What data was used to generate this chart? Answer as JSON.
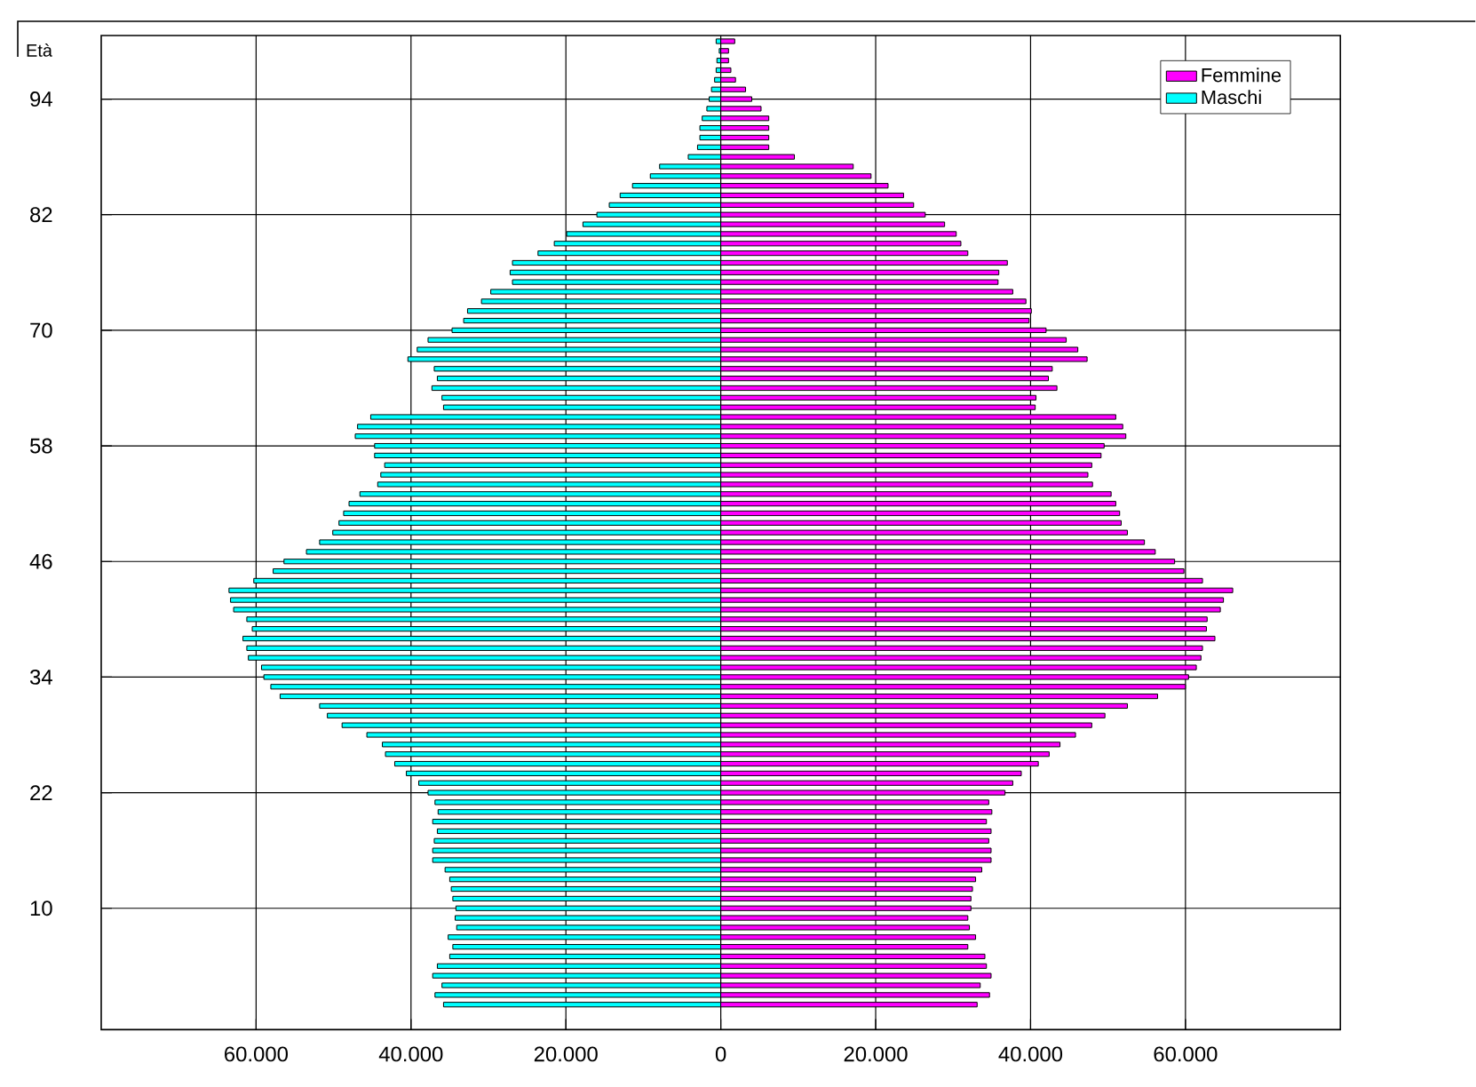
{
  "chart_data": {
    "type": "bar",
    "orientation": "horizontal",
    "stacked": true,
    "ylabel": "Età",
    "categories": [
      null,
      null,
      null,
      null,
      null,
      null,
      "94",
      null,
      null,
      null,
      null,
      null,
      null,
      null,
      null,
      null,
      null,
      null,
      "82",
      null,
      null,
      null,
      null,
      null,
      null,
      null,
      null,
      null,
      null,
      null,
      "70",
      null,
      null,
      null,
      null,
      null,
      null,
      null,
      null,
      null,
      null,
      null,
      "58",
      null,
      null,
      null,
      null,
      null,
      null,
      null,
      null,
      null,
      null,
      null,
      "46",
      null,
      null,
      null,
      null,
      null,
      null,
      null,
      null,
      null,
      null,
      null,
      "34",
      null,
      null,
      null,
      null,
      null,
      null,
      null,
      null,
      null,
      null,
      null,
      "22",
      null,
      null,
      null,
      null,
      null,
      null,
      null,
      null,
      null,
      null,
      null,
      "10",
      null,
      null,
      null,
      null,
      null,
      null,
      null,
      null,
      null,
      null
    ],
    "series": [
      {
        "name": "Femmine",
        "color": "#ff00ff",
        "values": [
          1800,
          1000,
          1000,
          1300,
          1900,
          3200,
          4000,
          5200,
          6200,
          6200,
          6200,
          6200,
          9500,
          17100,
          19400,
          21600,
          23600,
          24900,
          26400,
          28900,
          30400,
          31000,
          31900,
          37000,
          35900,
          35800,
          37700,
          39400,
          40100,
          39800,
          42000,
          44600,
          46100,
          47300,
          42800,
          42300,
          43400,
          40700,
          40600,
          51000,
          51900,
          52300,
          49500,
          49100,
          47900,
          47400,
          48000,
          50400,
          51000,
          51500,
          51700,
          52500,
          54700,
          56100,
          58600,
          59800,
          62200,
          66100,
          64900,
          64500,
          62800,
          62700,
          63800,
          62200,
          62000,
          61400,
          60400,
          60000,
          56400,
          52500,
          49600,
          47900,
          45800,
          43800,
          42400,
          41000,
          38800,
          37700,
          36700,
          34600,
          35000,
          34300,
          34900,
          34600,
          34900,
          34900,
          33700,
          32900,
          32500,
          32300,
          32300,
          31900,
          32100,
          32900,
          31900,
          34100,
          34300,
          34900,
          33500,
          34700,
          33100
        ]
      },
      {
        "name": "Maschi",
        "color": "#00ffff",
        "values": [
          -600,
          -200,
          -500,
          -600,
          -800,
          -1200,
          -1500,
          -1800,
          -2400,
          -2700,
          -2700,
          -3000,
          -4200,
          -7900,
          -9100,
          -11400,
          -13000,
          -14400,
          -16000,
          -17800,
          -19900,
          -21500,
          -23600,
          -26900,
          -27200,
          -26900,
          -29700,
          -30900,
          -32700,
          -33200,
          -34700,
          -37800,
          -39200,
          -40400,
          -37000,
          -36600,
          -37300,
          -36000,
          -35800,
          -45200,
          -46900,
          -47200,
          -44700,
          -44700,
          -43400,
          -43900,
          -44300,
          -46600,
          -48000,
          -48700,
          -49300,
          -50100,
          -51800,
          -53500,
          -56400,
          -57800,
          -60300,
          -63500,
          -63300,
          -62900,
          -61200,
          -60500,
          -61700,
          -61200,
          -61000,
          -59300,
          -59000,
          -58100,
          -56900,
          -51800,
          -50800,
          -48900,
          -45700,
          -43700,
          -43300,
          -42100,
          -40600,
          -39000,
          -37800,
          -36900,
          -36500,
          -37200,
          -36600,
          -37000,
          -37200,
          -37200,
          -35600,
          -35000,
          -34800,
          -34600,
          -34200,
          -34300,
          -34100,
          -35200,
          -34600,
          -35000,
          -36600,
          -37200,
          -36000,
          -36900,
          -35800
        ]
      }
    ],
    "xlim": [
      -80000,
      80000
    ],
    "xticks": [
      {
        "value": -60000,
        "label": "60.000"
      },
      {
        "value": -40000,
        "label": "40.000"
      },
      {
        "value": -20000,
        "label": "20.000"
      },
      0,
      {
        "value": 20000,
        "label": "20.000"
      },
      {
        "value": 40000,
        "label": "40.000"
      },
      {
        "value": 60000,
        "label": "60.000"
      }
    ],
    "grid": true,
    "legend": "top right"
  }
}
